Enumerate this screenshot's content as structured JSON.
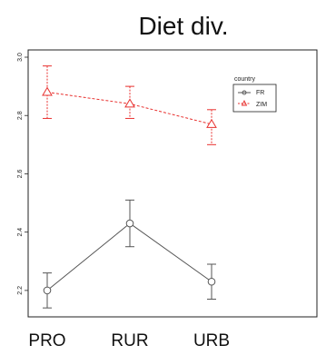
{
  "chart_data": {
    "type": "line",
    "title": "Diet div.",
    "xlabel": "",
    "ylabel": "",
    "categories": [
      "PRO",
      "RUR",
      "URB"
    ],
    "ylim": [
      2.1,
      3.0
    ],
    "yticks": [
      "2.2",
      "2.4",
      "2.6",
      "2.8",
      "3.0"
    ],
    "grid": false,
    "legend": {
      "title": "country",
      "position": "top-right"
    },
    "series": [
      {
        "name": "FR",
        "values": [
          2.2,
          2.43,
          2.23
        ],
        "err_low": [
          2.14,
          2.35,
          2.17
        ],
        "err_high": [
          2.26,
          2.51,
          2.29
        ],
        "color": "#555555",
        "line_style": "solid",
        "marker": "circle"
      },
      {
        "name": "ZIM",
        "values": [
          2.88,
          2.84,
          2.77
        ],
        "err_low": [
          2.79,
          2.79,
          2.7
        ],
        "err_high": [
          2.97,
          2.9,
          2.82
        ],
        "color": "#e8312f",
        "line_style": "dashed",
        "marker": "triangle"
      }
    ]
  }
}
